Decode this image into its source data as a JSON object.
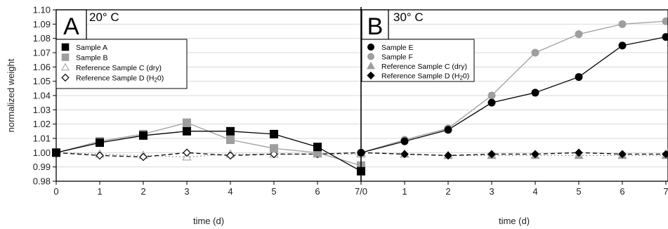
{
  "chart_data": [
    {
      "type": "line",
      "panel_letter": "A",
      "panel_label": "20° C",
      "x": [
        0,
        1,
        2,
        3,
        4,
        5,
        6,
        7
      ],
      "x_tick_labels": [
        "0",
        "1",
        "2",
        "3",
        "4",
        "5",
        "6",
        "7/0"
      ],
      "xlabel": "time (d)",
      "ylabel": "normalized weight",
      "ylim": [
        0.98,
        1.1
      ],
      "y_ticks": [
        "0.98",
        "0.99",
        "1.00",
        "1.01",
        "1.02",
        "1.03",
        "1.04",
        "1.05",
        "1.06",
        "1.07",
        "1.08",
        "1.09",
        "1.10"
      ],
      "grid": true,
      "legend_position": "top-left",
      "series": [
        {
          "name": "Sample A",
          "values": [
            1.0,
            1.007,
            1.012,
            1.015,
            1.015,
            1.013,
            1.004,
            0.987
          ],
          "color": "#000000",
          "marker": "square",
          "marker_fill": "#000000",
          "line_style": "solid",
          "line_color": "#000000"
        },
        {
          "name": "Sample B",
          "values": [
            1.0,
            1.008,
            1.013,
            1.021,
            1.009,
            1.003,
            1.0,
            0.991
          ],
          "color": "#9e9e9e",
          "marker": "square",
          "marker_fill": "#9e9e9e",
          "line_style": "solid",
          "line_color": "#9e9e9e"
        },
        {
          "name": "Reference Sample C (dry)",
          "values": [
            1.0,
            0.999,
            0.998,
            0.997,
            0.999,
            0.999,
            0.999,
            0.999
          ],
          "color": "#9e9e9e",
          "marker": "triangle",
          "marker_fill": "#ffffff",
          "line_style": "dotted",
          "line_color": "#9e9e9e"
        },
        {
          "name": "Reference Sample D (H",
          "sub": "2",
          "suffix": "0)",
          "values": [
            1.0,
            0.998,
            0.997,
            1.0,
            0.998,
            0.999,
            0.999,
            1.0
          ],
          "color": "#000000",
          "marker": "diamond",
          "marker_fill": "#ffffff",
          "line_style": "dashed",
          "line_color": "#000000"
        }
      ]
    },
    {
      "type": "line",
      "panel_letter": "B",
      "panel_label": "30° C",
      "x": [
        0,
        1,
        2,
        3,
        4,
        5,
        6,
        7
      ],
      "x_tick_labels": [
        "",
        "1",
        "2",
        "3",
        "4",
        "5",
        "6",
        "7"
      ],
      "xlabel": "time (d)",
      "ylim": [
        0.98,
        1.1
      ],
      "grid": true,
      "legend_position": "top-left",
      "series": [
        {
          "name": "Sample E",
          "values": [
            1.0,
            1.008,
            1.016,
            1.035,
            1.042,
            1.053,
            1.075,
            1.081
          ],
          "color": "#000000",
          "marker": "circle",
          "marker_fill": "#000000",
          "line_style": "solid",
          "line_color": "#000000"
        },
        {
          "name": "Sample F",
          "values": [
            1.0,
            1.009,
            1.017,
            1.04,
            1.07,
            1.083,
            1.09,
            1.092
          ],
          "color": "#9e9e9e",
          "marker": "circle",
          "marker_fill": "#9e9e9e",
          "line_style": "solid",
          "line_color": "#9e9e9e"
        },
        {
          "name": "Reference Sample C (dry)",
          "values": [
            1.0,
            0.999,
            0.998,
            0.998,
            0.998,
            0.998,
            0.998,
            0.998
          ],
          "color": "#9e9e9e",
          "marker": "triangle",
          "marker_fill": "#9e9e9e",
          "line_style": "dotted",
          "line_color": "#9e9e9e"
        },
        {
          "name": "Reference Sample D (H",
          "sub": "2",
          "suffix": "0)",
          "values": [
            1.0,
            0.999,
            0.998,
            0.999,
            0.999,
            1.0,
            0.999,
            0.999
          ],
          "color": "#000000",
          "marker": "diamond",
          "marker_fill": "#000000",
          "line_style": "dashed",
          "line_color": "#000000"
        }
      ]
    }
  ]
}
